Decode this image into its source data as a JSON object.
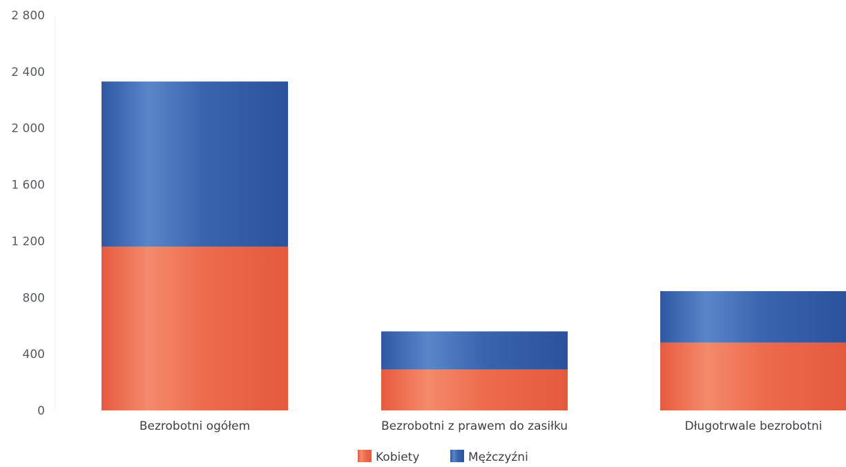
{
  "chart_data": {
    "type": "bar",
    "stacked": true,
    "categories": [
      "Bezrobotni ogółem",
      "Bezrobotni z prawem do zasiłku",
      "Długotrwale bezrobotni"
    ],
    "series": [
      {
        "name": "Kobiety",
        "values": [
          1160,
          290,
          480
        ],
        "color": "#ee6b4d"
      },
      {
        "name": "Mężczyźni",
        "values": [
          1170,
          270,
          365
        ],
        "color": "#3a64ae"
      }
    ],
    "ylim": [
      0,
      2800
    ],
    "yticks": [
      0,
      400,
      800,
      1200,
      1600,
      2000,
      2400,
      2800
    ],
    "ytick_labels": [
      "0",
      "400",
      "800",
      "1 200",
      "1 600",
      "2 000",
      "2 400",
      "2 800"
    ],
    "grid": false,
    "legend_position": "bottom-center",
    "title": "",
    "xlabel": "",
    "ylabel": ""
  }
}
